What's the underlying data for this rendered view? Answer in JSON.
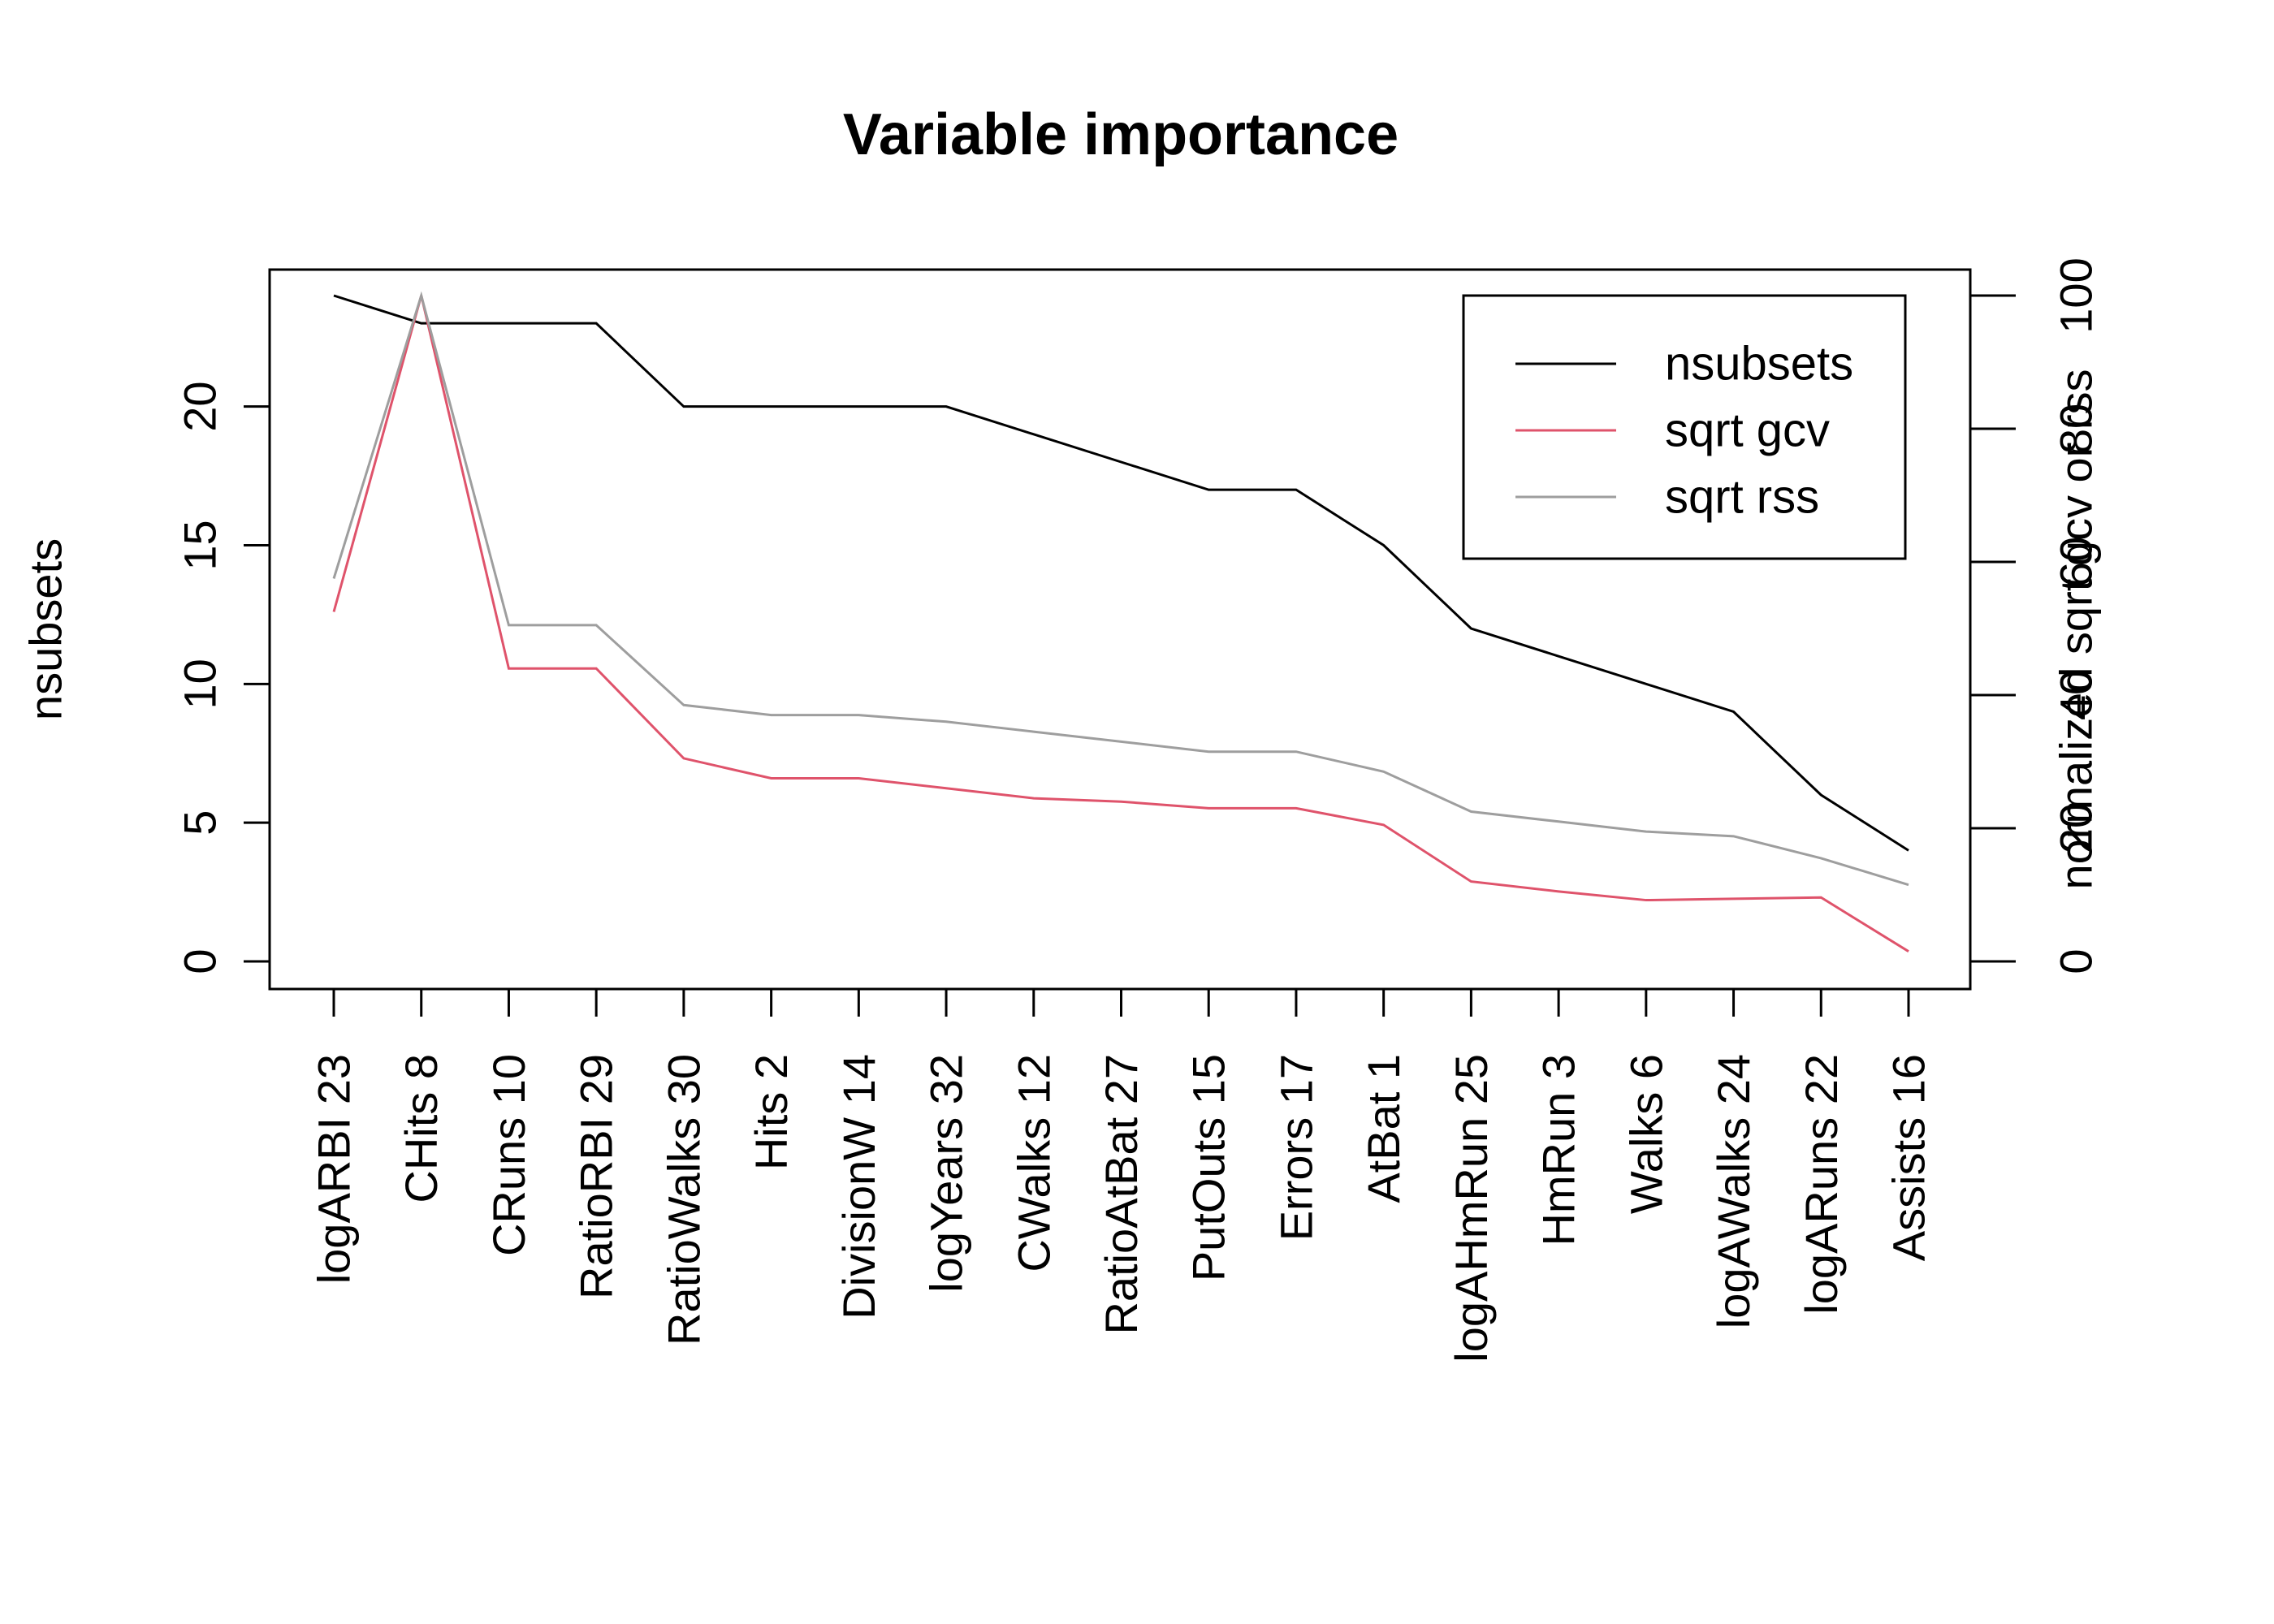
{
  "chart_data": {
    "type": "line",
    "title": "Variable importance",
    "ylabel": "nsubsets",
    "ylabel_right": "normalized sqrt gcv or rss",
    "ylim": [
      0,
      25
    ],
    "ylim_right": [
      0,
      100
    ],
    "yticks": [
      "0",
      "5",
      "10",
      "15",
      "20"
    ],
    "yticks_right": [
      "0",
      "20",
      "40",
      "60",
      "80",
      "100"
    ],
    "categories": [
      "logARBI  23",
      "CHits  8",
      "CRuns  10",
      "RatioRBI  29",
      "RatioWalks  30",
      "Hits  2",
      "DivisionW  14",
      "logYears  32",
      "CWalks  12",
      "RatioAtBat  27",
      "PutOuts  15",
      "Errors  17",
      "AtBat  1",
      "logAHmRun  25",
      "HmRun  3",
      "Walks  6",
      "logAWalks  24",
      "logARuns  22",
      "Assists  16"
    ],
    "series": [
      {
        "name": "nsubsets",
        "color": "#000000",
        "axis": "left",
        "values": [
          24,
          23,
          23,
          23,
          20,
          20,
          20,
          20,
          19,
          18,
          17,
          17,
          15,
          12,
          11,
          10,
          9,
          6,
          4
        ]
      },
      {
        "name": "sqrt gcv",
        "color": "#DF536B",
        "axis": "right",
        "values": [
          52.5,
          100,
          44,
          44,
          30.5,
          27.5,
          27.5,
          26,
          24.5,
          24,
          23,
          23,
          20.5,
          12,
          10.5,
          9.2,
          9.4,
          9.6,
          1.5
        ]
      },
      {
        "name": "sqrt rss",
        "color": "#9E9E9E",
        "axis": "right",
        "values": [
          57.5,
          100,
          50.5,
          50.5,
          38.5,
          37,
          37,
          36,
          34.5,
          33,
          31.5,
          31.5,
          28.5,
          22.5,
          21,
          19.5,
          18.8,
          15.5,
          11.5
        ]
      }
    ],
    "legend": {
      "position": "top-right",
      "entries": [
        "nsubsets",
        "sqrt gcv",
        "sqrt rss"
      ]
    },
    "grid": false
  }
}
